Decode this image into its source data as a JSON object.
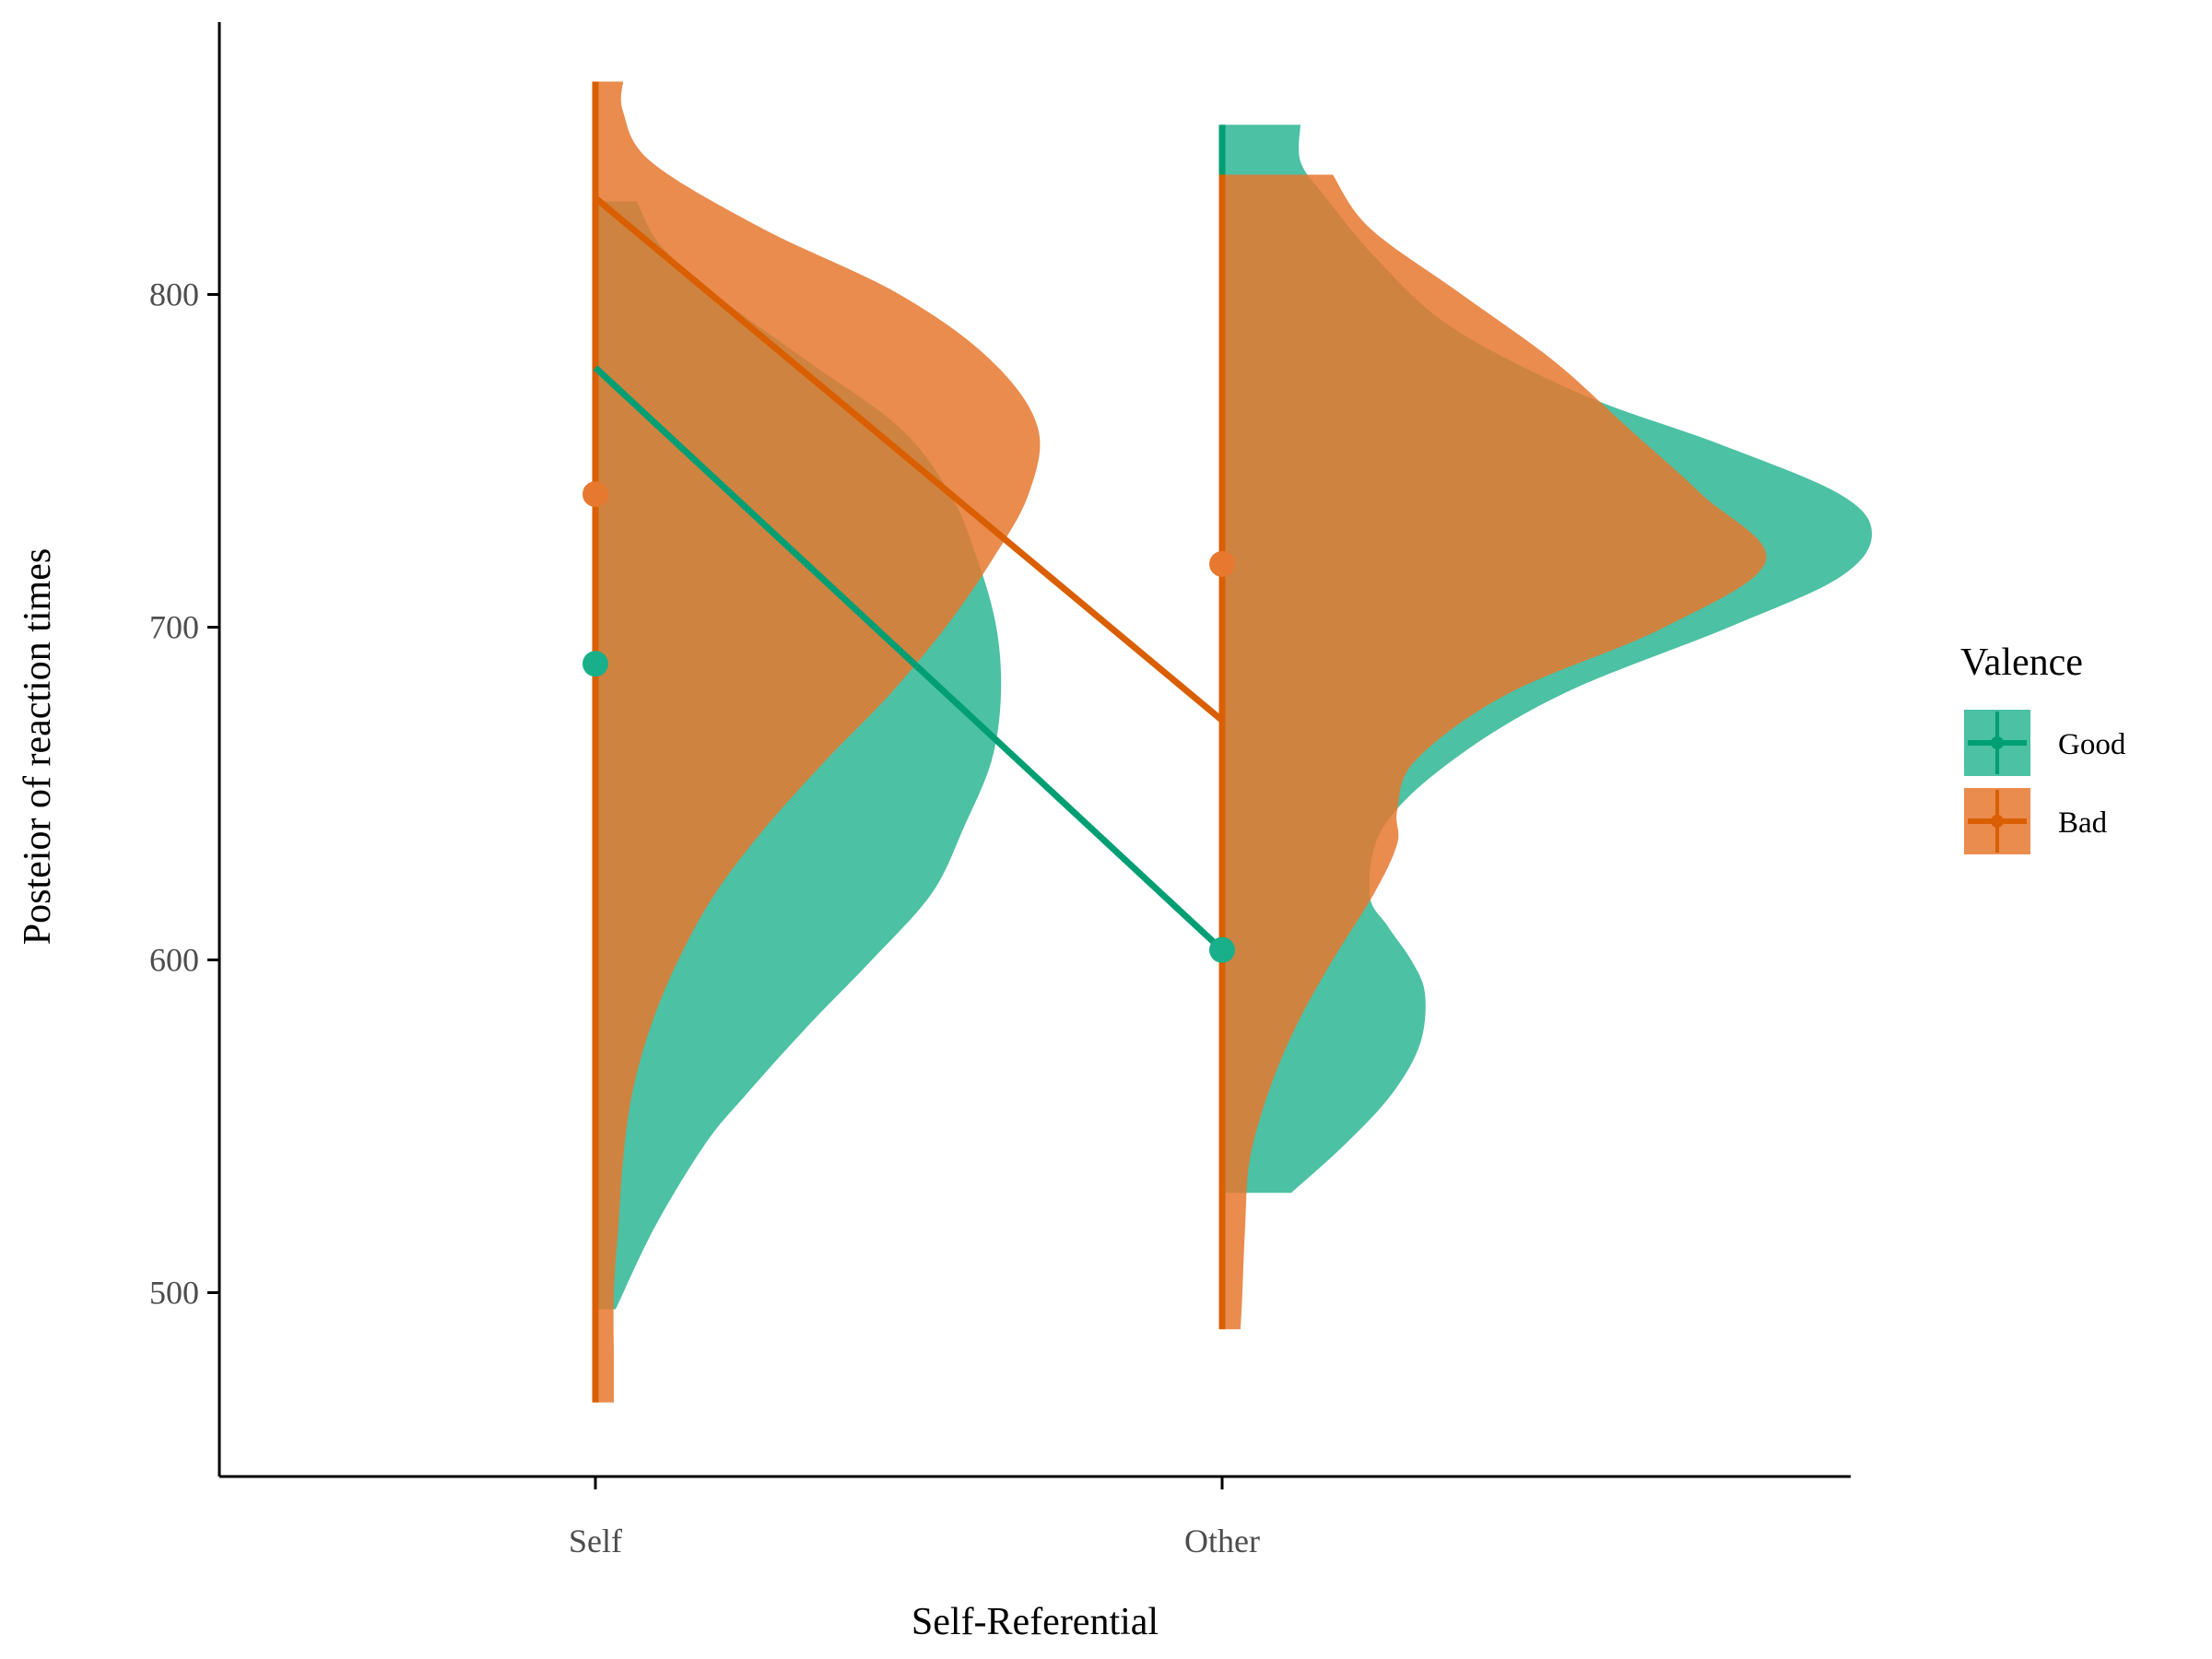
{
  "chart_data": {
    "type": "violin",
    "xlabel": "Self-Referential",
    "ylabel": "Posteior of reaction times",
    "categories": [
      "Self",
      "Other"
    ],
    "yticks": [
      500,
      600,
      700,
      800
    ],
    "ylim": [
      447,
      876
    ],
    "grid": false,
    "legend": {
      "title": "Valence",
      "placement": "right",
      "entries": [
        "Good",
        "Bad"
      ]
    },
    "series": [
      {
        "name": "Good",
        "color": "#009E73",
        "fill": "#1AAF8B",
        "fill_opacity": 0.78,
        "means": [
          689,
          603
        ],
        "line_points": [
          778,
          603
        ],
        "intervals": [
          [
            495,
            828
          ],
          [
            530,
            851
          ]
        ],
        "density": [
          {
            "category": "Self",
            "min": 495,
            "max": 828,
            "y": [
              495,
              520,
              545,
              560,
              580,
              600,
              620,
              640,
              660,
              680,
              700,
              720,
              740,
              760,
              780,
              800,
              815,
              828
            ],
            "w": [
              0.022,
              0.065,
              0.12,
              0.165,
              0.23,
              0.3,
              0.365,
              0.4,
              0.43,
              0.44,
              0.435,
              0.415,
              0.385,
              0.33,
              0.23,
              0.13,
              0.07,
              0.045
            ]
          },
          {
            "category": "Other",
            "min": 530,
            "max": 851,
            "y": [
              530,
              545,
              560,
              575,
              590,
              600,
              610,
              620,
              640,
              660,
              680,
              700,
              715,
              728,
              740,
              755,
              770,
              790,
              810,
              830,
              840,
              851
            ],
            "w": [
              0.075,
              0.135,
              0.185,
              0.215,
              0.22,
              0.205,
              0.18,
              0.16,
              0.175,
              0.25,
              0.37,
              0.55,
              0.67,
              0.705,
              0.67,
              0.54,
              0.39,
              0.25,
              0.17,
              0.11,
              0.085,
              0.085
            ]
          }
        ]
      },
      {
        "name": "Bad",
        "color": "#D95F02",
        "fill": "#E6782F",
        "fill_opacity": 0.85,
        "means": [
          740,
          719
        ],
        "line_points": [
          829,
          672
        ],
        "intervals": [
          [
            467,
            864
          ],
          [
            489,
            836
          ]
        ],
        "density": [
          {
            "category": "Self",
            "min": 467,
            "max": 864,
            "y": [
              467,
              480,
              500,
              520,
              540,
              560,
              580,
              600,
              620,
              640,
              660,
              680,
              700,
              720,
              740,
              760,
              780,
              800,
              820,
              840,
              855,
              864
            ],
            "w": [
              0.02,
              0.02,
              0.02,
              0.025,
              0.03,
              0.04,
              0.06,
              0.09,
              0.13,
              0.185,
              0.25,
              0.32,
              0.38,
              0.43,
              0.47,
              0.48,
              0.43,
              0.33,
              0.18,
              0.06,
              0.03,
              0.03
            ]
          },
          {
            "category": "Other",
            "min": 489,
            "max": 836,
            "y": [
              489,
              500,
              520,
              540,
              560,
              580,
              600,
              620,
              635,
              645,
              660,
              680,
              700,
              720,
              740,
              760,
              780,
              800,
              820,
              836
            ],
            "w": [
              0.02,
              0.022,
              0.025,
              0.03,
              0.05,
              0.08,
              0.12,
              0.165,
              0.19,
              0.19,
              0.21,
              0.31,
              0.48,
              0.59,
              0.52,
              0.44,
              0.36,
              0.26,
              0.16,
              0.12
            ]
          }
        ]
      }
    ]
  }
}
